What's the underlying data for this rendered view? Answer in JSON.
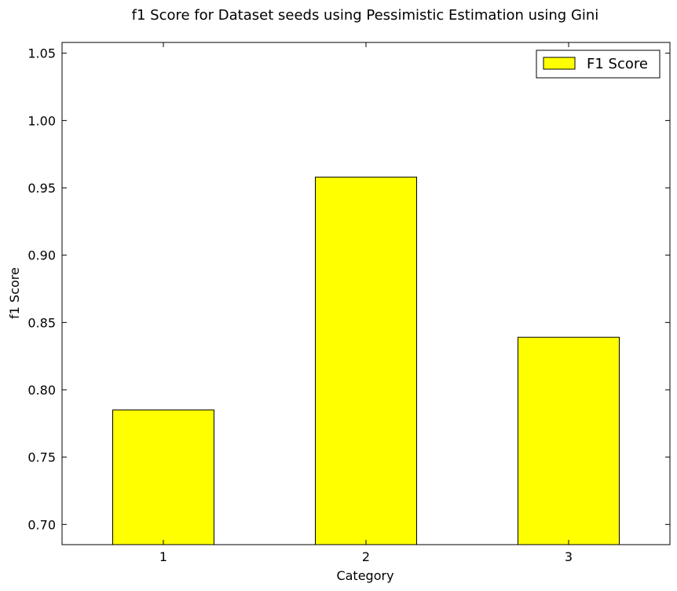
{
  "chart_data": {
    "type": "bar",
    "title": "f1 Score for Dataset seeds using Pessimistic Estimation using Gini",
    "xlabel": "Category",
    "ylabel": "f1 Score",
    "categories": [
      "1",
      "2",
      "3"
    ],
    "series": [
      {
        "name": "F1 Score",
        "values": [
          0.785,
          0.958,
          0.839
        ],
        "color": "#ffff00"
      }
    ],
    "ylim": [
      0.685,
      1.058
    ],
    "yticks": [
      0.7,
      0.75,
      0.8,
      0.85,
      0.9,
      0.95,
      1.0,
      1.05
    ],
    "ytick_labels": [
      "0.70",
      "0.75",
      "0.80",
      "0.85",
      "0.90",
      "0.95",
      "1.00",
      "1.05"
    ],
    "grid": false,
    "legend_position": "top-right",
    "colors": {
      "bar_fill": "#ffff00",
      "bar_edge": "#000000",
      "axes": "#000000",
      "background": "#ffffff"
    }
  }
}
